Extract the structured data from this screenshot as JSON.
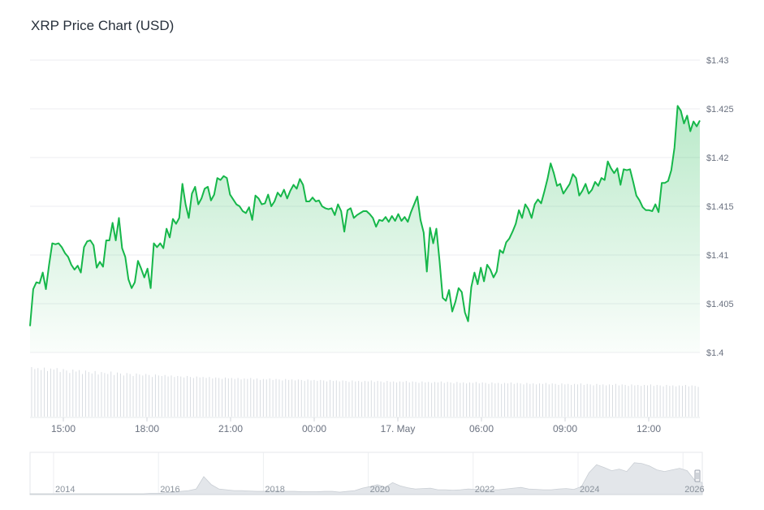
{
  "chart_data": {
    "type": "line",
    "title": "XRP Price Chart (USD)",
    "xlabel": "",
    "ylabel": "",
    "y_tick_labels": [
      "$1.4",
      "$1.405",
      "$1.41",
      "$1.415",
      "$1.42",
      "$1.425",
      "$1.43"
    ],
    "ylim": [
      1.4,
      1.43
    ],
    "x_tick_labels": [
      "15:00",
      "18:00",
      "21:00",
      "00:00",
      "17. May",
      "06:00",
      "09:00",
      "12:00"
    ],
    "x_start": "13:05",
    "x_end": "13:15 (next day)",
    "series": [
      {
        "color": "#16b74a",
        "values": [
          1.4027,
          1.4065,
          1.4072,
          1.4071,
          1.4082,
          1.4065,
          1.409,
          1.4112,
          1.4111,
          1.4112,
          1.4108,
          1.4102,
          1.4098,
          1.409,
          1.4085,
          1.4089,
          1.4082,
          1.4108,
          1.4114,
          1.4115,
          1.411,
          1.4087,
          1.4093,
          1.4088,
          1.4115,
          1.4115,
          1.4133,
          1.4115,
          1.4138,
          1.4107,
          1.4098,
          1.4075,
          1.4066,
          1.4072,
          1.4094,
          1.4086,
          1.4077,
          1.4086,
          1.4066,
          1.4112,
          1.4108,
          1.4112,
          1.4107,
          1.4127,
          1.4118,
          1.4137,
          1.4132,
          1.4138,
          1.4173,
          1.4152,
          1.4138,
          1.4163,
          1.417,
          1.4152,
          1.4158,
          1.4168,
          1.417,
          1.4156,
          1.4162,
          1.4179,
          1.4177,
          1.4181,
          1.4179,
          1.4162,
          1.4157,
          1.4152,
          1.415,
          1.4145,
          1.4143,
          1.4149,
          1.4136,
          1.4161,
          1.4158,
          1.4152,
          1.4153,
          1.4162,
          1.415,
          1.4155,
          1.4164,
          1.416,
          1.4167,
          1.4158,
          1.4166,
          1.4172,
          1.4168,
          1.4178,
          1.4172,
          1.4155,
          1.4155,
          1.4159,
          1.4155,
          1.4156,
          1.415,
          1.4148,
          1.4147,
          1.4148,
          1.4141,
          1.4152,
          1.4145,
          1.4124,
          1.4146,
          1.4148,
          1.4138,
          1.4141,
          1.4143,
          1.4145,
          1.4145,
          1.4142,
          1.4138,
          1.4129,
          1.4136,
          1.4135,
          1.4139,
          1.4134,
          1.414,
          1.4135,
          1.4142,
          1.4135,
          1.4139,
          1.4134,
          1.4144,
          1.4152,
          1.416,
          1.4136,
          1.4123,
          1.4083,
          1.4128,
          1.4112,
          1.4127,
          1.4094,
          1.4056,
          1.4053,
          1.4064,
          1.4042,
          1.4052,
          1.4066,
          1.4062,
          1.4041,
          1.4032,
          1.4067,
          1.4082,
          1.407,
          1.4087,
          1.4073,
          1.409,
          1.4085,
          1.4077,
          1.4083,
          1.4105,
          1.4102,
          1.4113,
          1.4117,
          1.4124,
          1.4132,
          1.4146,
          1.4138,
          1.4152,
          1.4147,
          1.4138,
          1.4152,
          1.4157,
          1.4153,
          1.4165,
          1.4178,
          1.4194,
          1.4184,
          1.4171,
          1.4173,
          1.4163,
          1.4168,
          1.4173,
          1.4183,
          1.4179,
          1.4161,
          1.4166,
          1.4173,
          1.4163,
          1.4167,
          1.4175,
          1.4171,
          1.4179,
          1.4177,
          1.4196,
          1.4189,
          1.4184,
          1.4189,
          1.4172,
          1.4188,
          1.4187,
          1.4188,
          1.4175,
          1.4161,
          1.4156,
          1.4149,
          1.4146,
          1.4146,
          1.4145,
          1.4152,
          1.4144,
          1.4174,
          1.4174,
          1.4176,
          1.4187,
          1.421,
          1.4253,
          1.4248,
          1.4235,
          1.4243,
          1.4227,
          1.4237,
          1.4232,
          1.4238
        ]
      }
    ],
    "volume": [
      1.0,
      0.96,
      0.98,
      0.94,
      0.99,
      0.92,
      0.97,
      0.95,
      0.98,
      0.9,
      0.96,
      0.93,
      0.88,
      0.95,
      0.91,
      0.94,
      0.86,
      0.93,
      0.9,
      0.87,
      0.92,
      0.85,
      0.9,
      0.88,
      0.86,
      0.91,
      0.84,
      0.89,
      0.87,
      0.83,
      0.88,
      0.86,
      0.82,
      0.87,
      0.85,
      0.83,
      0.86,
      0.84,
      0.8,
      0.85,
      0.83,
      0.82,
      0.84,
      0.81,
      0.83,
      0.8,
      0.82,
      0.81,
      0.79,
      0.82,
      0.8,
      0.78,
      0.81,
      0.79,
      0.8,
      0.78,
      0.8,
      0.77,
      0.79,
      0.78,
      0.76,
      0.79,
      0.77,
      0.78,
      0.76,
      0.78,
      0.75,
      0.77,
      0.76,
      0.78,
      0.75,
      0.77,
      0.74,
      0.76,
      0.75,
      0.77,
      0.74,
      0.76,
      0.75,
      0.73,
      0.76,
      0.74,
      0.75,
      0.73,
      0.75,
      0.74,
      0.72,
      0.75,
      0.73,
      0.74,
      0.72,
      0.74,
      0.73,
      0.71,
      0.74,
      0.72,
      0.73,
      0.71,
      0.73,
      0.72,
      0.7,
      0.73,
      0.71,
      0.72,
      0.7,
      0.72,
      0.71,
      0.73,
      0.7,
      0.72,
      0.71,
      0.69,
      0.72,
      0.7,
      0.71,
      0.69,
      0.71,
      0.7,
      0.72,
      0.69,
      0.71,
      0.7,
      0.68,
      0.71,
      0.69,
      0.7,
      0.68,
      0.7,
      0.69,
      0.71,
      0.68,
      0.7,
      0.69,
      0.67,
      0.7,
      0.68,
      0.69,
      0.67,
      0.69,
      0.68,
      0.7,
      0.67,
      0.69,
      0.68,
      0.66,
      0.69,
      0.67,
      0.68,
      0.66,
      0.68,
      0.67,
      0.69,
      0.66,
      0.68,
      0.67,
      0.65,
      0.68,
      0.66,
      0.67,
      0.65,
      0.67,
      0.66,
      0.68,
      0.65,
      0.67,
      0.66,
      0.64,
      0.67,
      0.65,
      0.66,
      0.64,
      0.66,
      0.65,
      0.67,
      0.64,
      0.66,
      0.65,
      0.63,
      0.66,
      0.64,
      0.65,
      0.63,
      0.65,
      0.64,
      0.66,
      0.63,
      0.65,
      0.64,
      0.62,
      0.65,
      0.63,
      0.64,
      0.62,
      0.64,
      0.63,
      0.65,
      0.62,
      0.64,
      0.63,
      0.61,
      0.64,
      0.62,
      0.63,
      0.61,
      0.63,
      0.62,
      0.64,
      0.61,
      0.63,
      0.62,
      0.6
    ],
    "navigator": {
      "x_tick_labels": [
        "2014",
        "2016",
        "2018",
        "2020",
        "2022",
        "2024",
        "2026"
      ],
      "values": [
        0.02,
        0.02,
        0.02,
        0.02,
        0.02,
        0.02,
        0.02,
        0.02,
        0.02,
        0.02,
        0.02,
        0.02,
        0.02,
        0.02,
        0.02,
        0.02,
        0.03,
        0.03,
        0.05,
        0.06,
        0.08,
        0.1,
        0.14,
        0.45,
        0.25,
        0.14,
        0.12,
        0.1,
        0.1,
        0.09,
        0.08,
        0.08,
        0.1,
        0.09,
        0.08,
        0.08,
        0.07,
        0.07,
        0.07,
        0.08,
        0.08,
        0.06,
        0.08,
        0.1,
        0.16,
        0.2,
        0.25,
        0.18,
        0.3,
        0.22,
        0.17,
        0.14,
        0.15,
        0.16,
        0.12,
        0.12,
        0.11,
        0.12,
        0.14,
        0.13,
        0.12,
        0.12,
        0.12,
        0.14,
        0.16,
        0.18,
        0.14,
        0.13,
        0.12,
        0.12,
        0.14,
        0.15,
        0.13,
        0.2,
        0.55,
        0.75,
        0.68,
        0.6,
        0.64,
        0.58,
        0.8,
        0.78,
        0.72,
        0.62,
        0.58,
        0.62,
        0.66,
        0.6,
        0.36,
        0.3
      ]
    }
  }
}
